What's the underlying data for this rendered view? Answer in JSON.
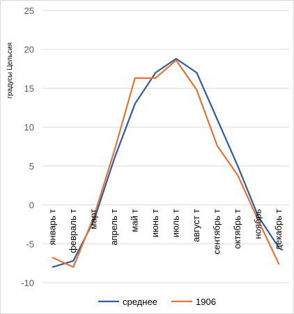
{
  "chart_data": {
    "type": "line",
    "title": "",
    "xlabel": "",
    "ylabel": "градусы Цельсия",
    "ylim": [
      -10,
      25
    ],
    "yticks": [
      25,
      20,
      15,
      10,
      5,
      0,
      -5,
      -10
    ],
    "grid": true,
    "legend_position": "bottom",
    "categories": [
      "январь т",
      "февраль т",
      "март",
      "апрель т",
      "май т",
      "июнь т",
      "июль т",
      "август т",
      "сентябрь т",
      "октябрь т",
      "ноябрь",
      "декабрь т"
    ],
    "series": [
      {
        "name": "среднее",
        "color": "#2e5aa8",
        "values": [
          -8.0,
          -7.2,
          -2.0,
          6.0,
          13.0,
          17.0,
          18.8,
          17.0,
          11.0,
          5.0,
          -1.5,
          -5.5
        ]
      },
      {
        "name": "1906",
        "color": "#e97132",
        "values": [
          -6.8,
          -8.0,
          -1.5,
          7.0,
          16.3,
          16.3,
          18.6,
          14.8,
          7.6,
          3.8,
          -2.0,
          -7.6
        ]
      }
    ]
  }
}
